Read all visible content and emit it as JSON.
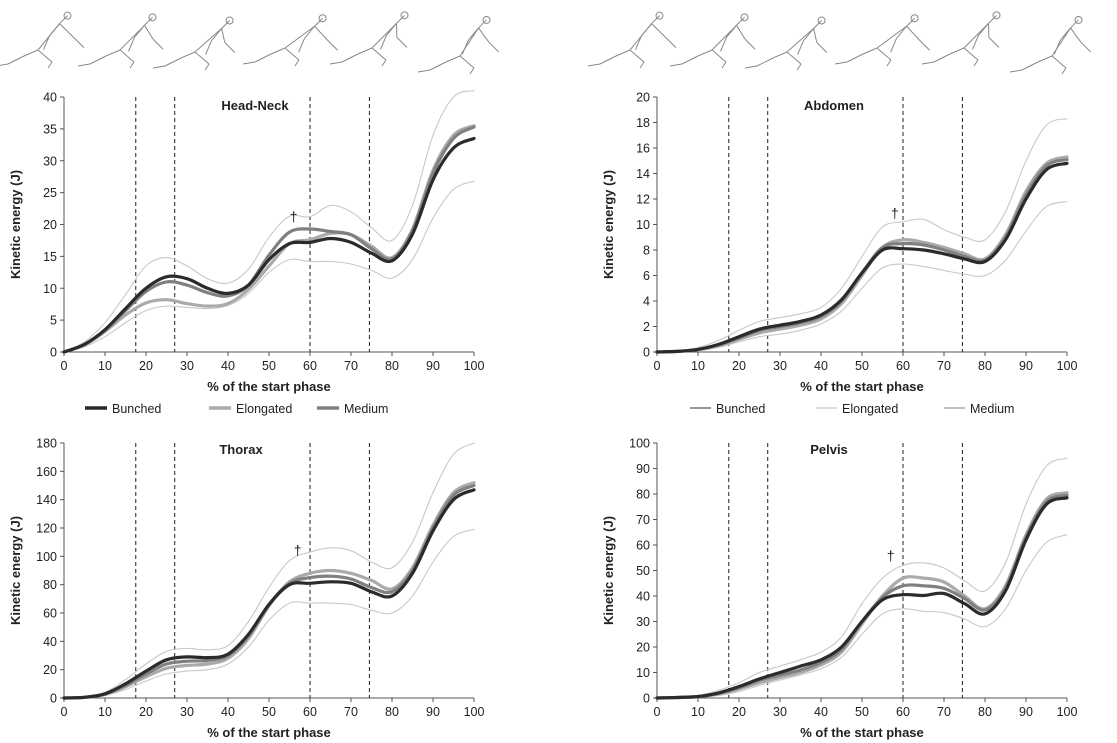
{
  "figure": {
    "legend": {
      "bunched": "Bunched",
      "elongated": "Elongated",
      "medium": "Medium"
    },
    "colors": {
      "bunched": "#2b2b2b",
      "elongated": "#aaaaaa",
      "medium": "#808080",
      "sd": "#c8c8c8",
      "vline": "#333333",
      "axis": "#555555"
    }
  },
  "chart_data": [
    {
      "type": "line",
      "title": "Head-Neck",
      "xlabel": "% of the start phase",
      "ylabel": "Kinetic energy (J)",
      "xlim": [
        0,
        100
      ],
      "ylim": [
        0,
        40
      ],
      "xticks": [
        0,
        10,
        20,
        30,
        40,
        50,
        60,
        70,
        80,
        90,
        100
      ],
      "yticks": [
        0,
        5,
        10,
        15,
        20,
        25,
        30,
        35,
        40
      ],
      "vlines": [
        17.5,
        27,
        60,
        74.5
      ],
      "annotation": {
        "text": "†",
        "x": 56,
        "y": 20.5
      },
      "x": [
        0,
        5,
        10,
        15,
        20,
        25,
        30,
        35,
        40,
        45,
        50,
        55,
        60,
        65,
        70,
        75,
        80,
        85,
        90,
        95,
        100
      ],
      "series": [
        {
          "name": "Bunched",
          "values": [
            0,
            1.2,
            3.5,
            6.8,
            10,
            11.8,
            11.5,
            10,
            9.2,
            10.5,
            14.5,
            17,
            17.2,
            17.8,
            17.2,
            15.5,
            14.3,
            18.5,
            27,
            32,
            33.5
          ]
        },
        {
          "name": "Elongated",
          "values": [
            0,
            1.1,
            3.2,
            5.8,
            7.7,
            8.2,
            7.6,
            7.2,
            7.6,
            9.8,
            13.5,
            17,
            17.6,
            18.6,
            18.4,
            16.6,
            14.8,
            19.3,
            28.5,
            34,
            35.5
          ]
        },
        {
          "name": "Medium",
          "values": [
            0,
            1.2,
            3.4,
            6.5,
            9.5,
            11,
            10.5,
            9.3,
            8.8,
            10.5,
            15.2,
            18.8,
            19.3,
            18.9,
            18.4,
            16.2,
            14.6,
            19,
            28,
            33.5,
            35.3
          ]
        },
        {
          "name": "",
          "values": [
            0,
            1.6,
            4.6,
            9,
            13.5,
            14.8,
            13.5,
            11.5,
            10.8,
            13,
            18,
            21.3,
            21.2,
            23,
            22,
            19.5,
            17.5,
            23,
            34,
            40,
            41
          ]
        },
        {
          "name": "",
          "values": [
            0,
            0.8,
            2.4,
            4.6,
            6.5,
            7.2,
            7,
            6.8,
            7.3,
            9.2,
            12.5,
            14.5,
            14.2,
            14.2,
            13.8,
            12.8,
            11.6,
            14.5,
            21,
            25.5,
            26.8
          ]
        }
      ]
    },
    {
      "type": "line",
      "title": "Abdomen",
      "xlabel": "% of the start phase",
      "ylabel": "Kinetic energy (J)",
      "xlim": [
        0,
        100
      ],
      "ylim": [
        0,
        20
      ],
      "xticks": [
        0,
        10,
        20,
        30,
        40,
        50,
        60,
        70,
        80,
        90,
        100
      ],
      "yticks": [
        0,
        2,
        4,
        6,
        8,
        10,
        12,
        14,
        16,
        18,
        20
      ],
      "vlines": [
        17.5,
        27,
        60,
        74.5
      ],
      "annotation": {
        "text": "†",
        "x": 58,
        "y": 10.5
      },
      "x": [
        0,
        5,
        10,
        15,
        20,
        25,
        30,
        35,
        40,
        45,
        50,
        55,
        60,
        65,
        70,
        75,
        80,
        85,
        90,
        95,
        100
      ],
      "series": [
        {
          "name": "Bunched",
          "values": [
            0,
            0.05,
            0.2,
            0.6,
            1.2,
            1.8,
            2.1,
            2.4,
            2.9,
            4.1,
            6.2,
            8,
            8.1,
            8,
            7.7,
            7.3,
            7.1,
            8.8,
            12,
            14.3,
            14.8
          ]
        },
        {
          "name": "Elongated",
          "values": [
            0,
            0.05,
            0.2,
            0.5,
            1,
            1.5,
            1.8,
            2.1,
            2.6,
            3.8,
            6,
            8.2,
            8.8,
            8.6,
            8.2,
            7.7,
            7.3,
            9.2,
            12.6,
            14.8,
            15.3
          ]
        },
        {
          "name": "Medium",
          "values": [
            0,
            0.05,
            0.2,
            0.55,
            1.1,
            1.7,
            2,
            2.3,
            2.8,
            4,
            6.2,
            8.2,
            8.5,
            8.4,
            8,
            7.5,
            7.2,
            9,
            12.3,
            14.6,
            15.1
          ]
        },
        {
          "name": "",
          "values": [
            0,
            0.1,
            0.35,
            0.9,
            1.7,
            2.4,
            2.7,
            3,
            3.5,
            5,
            7.5,
            9.8,
            10.2,
            10.4,
            9.6,
            9,
            8.8,
            11,
            15,
            17.8,
            18.3
          ]
        },
        {
          "name": "",
          "values": [
            0,
            0.03,
            0.1,
            0.35,
            0.8,
            1.2,
            1.4,
            1.7,
            2.2,
            3.2,
            5,
            6.6,
            6.9,
            6.7,
            6.4,
            6.1,
            6,
            7.2,
            9.5,
            11.4,
            11.8
          ]
        }
      ]
    },
    {
      "type": "line",
      "title": "Thorax",
      "xlabel": "% of the start phase",
      "ylabel": "Kinetic energy (J)",
      "xlim": [
        0,
        100
      ],
      "ylim": [
        0,
        180
      ],
      "xticks": [
        0,
        10,
        20,
        30,
        40,
        50,
        60,
        70,
        80,
        90,
        100
      ],
      "yticks": [
        0,
        20,
        40,
        60,
        80,
        100,
        120,
        140,
        160,
        180
      ],
      "vlines": [
        17.5,
        27,
        60,
        74.5
      ],
      "annotation": {
        "text": "†",
        "x": 57,
        "y": 101
      },
      "x": [
        0,
        5,
        10,
        15,
        20,
        25,
        30,
        35,
        40,
        45,
        50,
        55,
        60,
        65,
        70,
        75,
        80,
        85,
        90,
        95,
        100
      ],
      "series": [
        {
          "name": "Bunched",
          "values": [
            0,
            0.5,
            3,
            10,
            19,
            27,
            29,
            28.5,
            31,
            45,
            66,
            80,
            81,
            82,
            81,
            75,
            72,
            88,
            118,
            140,
            147
          ]
        },
        {
          "name": "Elongated",
          "values": [
            0,
            0.4,
            2.5,
            8,
            15,
            21,
            23,
            24,
            28,
            42,
            65,
            82,
            88,
            90,
            88,
            83,
            77,
            92,
            122,
            145,
            152
          ]
        },
        {
          "name": "Medium",
          "values": [
            0,
            0.5,
            2.8,
            9,
            17,
            24,
            26,
            26.5,
            30,
            44,
            66,
            81,
            85,
            86,
            84,
            78,
            75,
            90,
            120,
            143,
            150
          ]
        },
        {
          "name": "",
          "values": [
            0,
            0.8,
            4,
            13,
            24,
            33,
            35,
            34,
            37,
            54,
            78,
            97,
            103,
            106,
            104,
            96,
            92,
            110,
            145,
            172,
            180
          ]
        },
        {
          "name": "",
          "values": [
            0,
            0.3,
            1.8,
            6,
            12,
            17,
            19,
            20,
            24,
            36,
            55,
            67,
            67,
            67,
            66,
            62,
            60,
            72,
            96,
            114,
            119
          ]
        }
      ]
    },
    {
      "type": "line",
      "title": "Pelvis",
      "xlabel": "% of the start phase",
      "ylabel": "Kinetic energy (J)",
      "xlim": [
        0,
        100
      ],
      "ylim": [
        0,
        100
      ],
      "xticks": [
        0,
        10,
        20,
        30,
        40,
        50,
        60,
        70,
        80,
        90,
        100
      ],
      "yticks": [
        0,
        10,
        20,
        30,
        40,
        50,
        60,
        70,
        80,
        90,
        100
      ],
      "vlines": [
        17.5,
        27,
        60,
        74.5
      ],
      "annotation": {
        "text": "†",
        "x": 57,
        "y": 54
      },
      "x": [
        0,
        5,
        10,
        15,
        20,
        25,
        30,
        35,
        40,
        45,
        50,
        55,
        60,
        65,
        70,
        75,
        80,
        85,
        90,
        95,
        100
      ],
      "series": [
        {
          "name": "Bunched",
          "values": [
            0,
            0.2,
            0.6,
            2,
            4.5,
            7.5,
            10,
            12.5,
            15,
            20,
            30,
            38.5,
            40.5,
            40.2,
            41,
            37,
            33,
            42,
            62,
            76,
            78.5
          ]
        },
        {
          "name": "Elongated",
          "values": [
            0,
            0.2,
            0.5,
            1.6,
            3.5,
            6,
            8,
            10,
            13,
            18,
            29,
            40,
            47,
            47,
            45.5,
            40,
            35,
            44,
            64,
            78,
            80.5
          ]
        },
        {
          "name": "Medium",
          "values": [
            0,
            0.2,
            0.55,
            1.8,
            4,
            7,
            9,
            11,
            14,
            19,
            30,
            39.5,
            44,
            44,
            43,
            39,
            34.5,
            43,
            63,
            77,
            79.5
          ]
        },
        {
          "name": "",
          "values": [
            0,
            0.4,
            1,
            3,
            6,
            10,
            12.5,
            15,
            18,
            24,
            37,
            47,
            52,
            53,
            51,
            46,
            42,
            53,
            76,
            91,
            94
          ]
        },
        {
          "name": "",
          "values": [
            0,
            0.1,
            0.3,
            1,
            2.5,
            5,
            7,
            9,
            11.5,
            16,
            25,
            33,
            35,
            34,
            33.5,
            31,
            28,
            35,
            50,
            61,
            64
          ]
        }
      ]
    }
  ]
}
